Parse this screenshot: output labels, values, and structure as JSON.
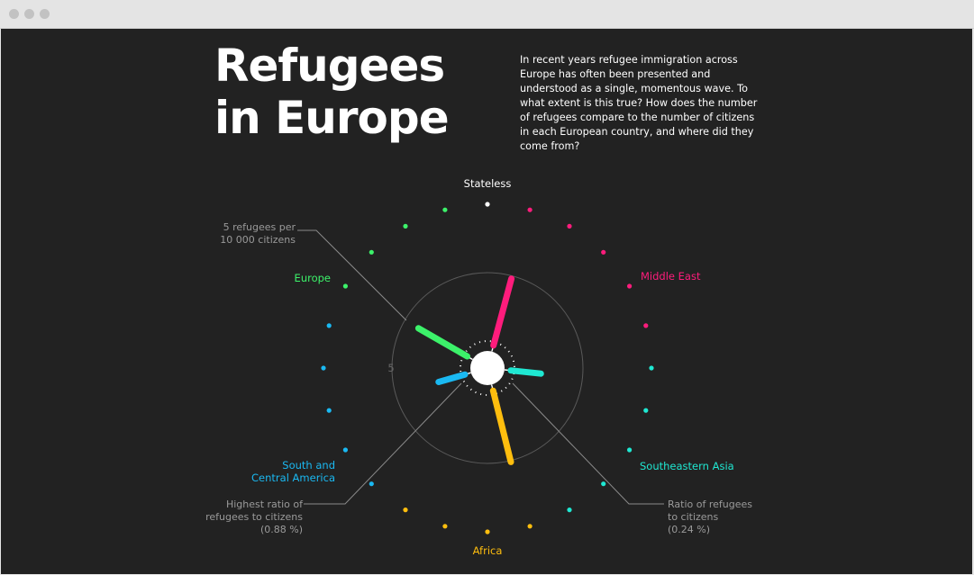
{
  "window": {
    "controls": [
      "close",
      "minimize",
      "maximize"
    ]
  },
  "header": {
    "title_line1": "Refugees",
    "title_line2": "in Europe",
    "intro": "In recent years refugee immigration across Europe has often been presented and understood as a single, momentous wave. To what extent is this true? How does the number of refugees compare to the number of citizens in each European country, and where did they come from?"
  },
  "chart_data": {
    "type": "radial",
    "ring_label": "5",
    "regions": [
      {
        "key": "stateless",
        "label": "Stateless",
        "color": "#ffffff",
        "dot_angles": [
          0
        ]
      },
      {
        "key": "middle_east",
        "label": "Middle East",
        "color": "#ff1c7c",
        "dot_angles": [
          15,
          30,
          45,
          60,
          75
        ]
      },
      {
        "key": "southeastern_asia",
        "label": "Southeastern Asia",
        "color": "#1fe8d2",
        "dot_angles": [
          90,
          105,
          120,
          135,
          150
        ]
      },
      {
        "key": "africa",
        "label": "Africa",
        "color": "#ffbe0e",
        "dot_angles": [
          165,
          180,
          195,
          210
        ]
      },
      {
        "key": "south_central_america",
        "label_line1": "South and",
        "label_line2": "Central America",
        "color": "#1ab9f2",
        "dot_angles": [
          225,
          240,
          255,
          270,
          285
        ]
      },
      {
        "key": "europe",
        "label": "Europe",
        "color": "#3cf26a",
        "dot_angles": [
          300,
          315,
          330,
          345
        ]
      }
    ],
    "bars": [
      {
        "region": "middle_east",
        "angle": 15,
        "value": 4.8
      },
      {
        "region": "southeastern_asia",
        "angle": 96,
        "value": 2.1
      },
      {
        "region": "africa",
        "angle": 166,
        "value": 5.1
      },
      {
        "region": "south_central_america",
        "angle": 254,
        "value": 1.9
      },
      {
        "region": "europe",
        "angle": 300,
        "value": 3.9
      }
    ],
    "annotations": {
      "ring": [
        "5 refugees per",
        "10 000 citizens"
      ],
      "highest": [
        "Highest ratio of",
        "refugees to citizens",
        "(0.88 %)"
      ],
      "ratio": [
        "Ratio of refugees",
        "to citizens",
        "(0.24 %)"
      ]
    },
    "annotation_color": "#9a9a9a"
  }
}
